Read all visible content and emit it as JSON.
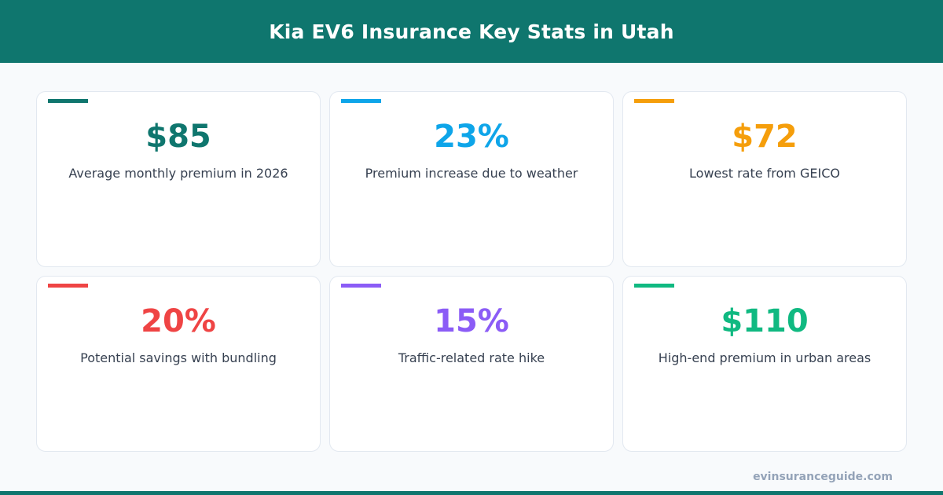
{
  "header": {
    "title": "Kia EV6 Insurance Key Stats in Utah"
  },
  "cards": [
    {
      "value": "$85",
      "label": "Average monthly premium in 2026",
      "color": "#0f766e"
    },
    {
      "value": "23%",
      "label": "Premium increase due to weather",
      "color": "#0ea5e9"
    },
    {
      "value": "$72",
      "label": "Lowest rate from GEICO",
      "color": "#f59e0b"
    },
    {
      "value": "20%",
      "label": "Potential savings with bundling",
      "color": "#ef4444"
    },
    {
      "value": "15%",
      "label": "Traffic-related rate hike",
      "color": "#8b5cf6"
    },
    {
      "value": "$110",
      "label": "High-end premium in urban areas",
      "color": "#10b981"
    }
  ],
  "footer": {
    "site": "evinsuranceguide.com"
  }
}
